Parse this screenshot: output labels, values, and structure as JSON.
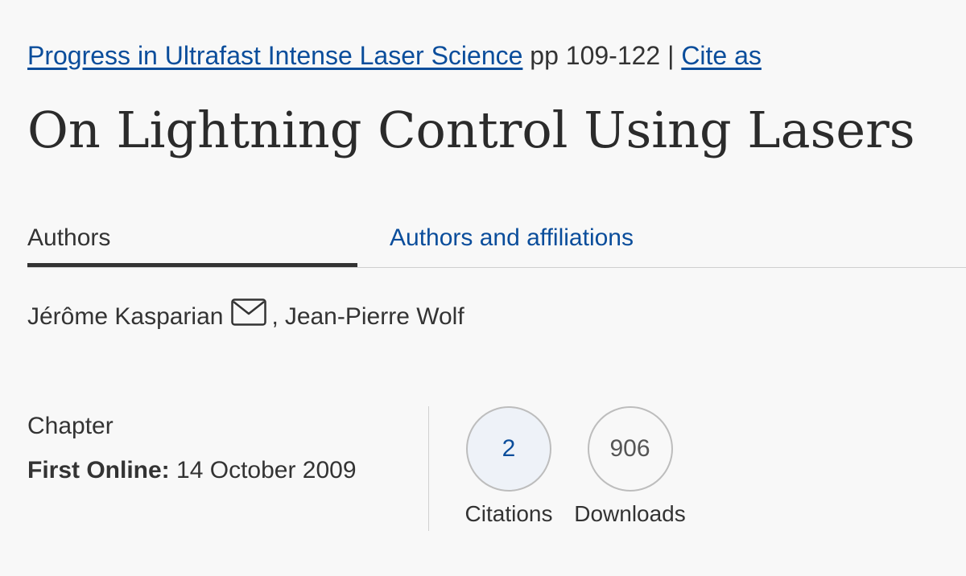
{
  "header": {
    "book_title": "Progress in Ultrafast Intense Laser Science",
    "pages": "pp 109-122",
    "separator": "|",
    "cite_label": "Cite as"
  },
  "title": "On Lightning Control Using Lasers",
  "tabs": [
    {
      "label": "Authors",
      "active": true
    },
    {
      "label": "Authors and affiliations",
      "active": false
    }
  ],
  "authors": {
    "first": "Jérôme Kasparian",
    "separator": ",",
    "second": "Jean-Pierre Wolf",
    "contact_icon": "mail-icon"
  },
  "meta": {
    "type": "Chapter",
    "first_online_label": "First Online:",
    "first_online_date": "14 October 2009"
  },
  "metrics": {
    "citations": {
      "value": "2",
      "label": "Citations"
    },
    "downloads": {
      "value": "906",
      "label": "Downloads"
    }
  },
  "colors": {
    "link": "#0a4d9b",
    "text": "#333333",
    "background": "#f8f8f8"
  }
}
